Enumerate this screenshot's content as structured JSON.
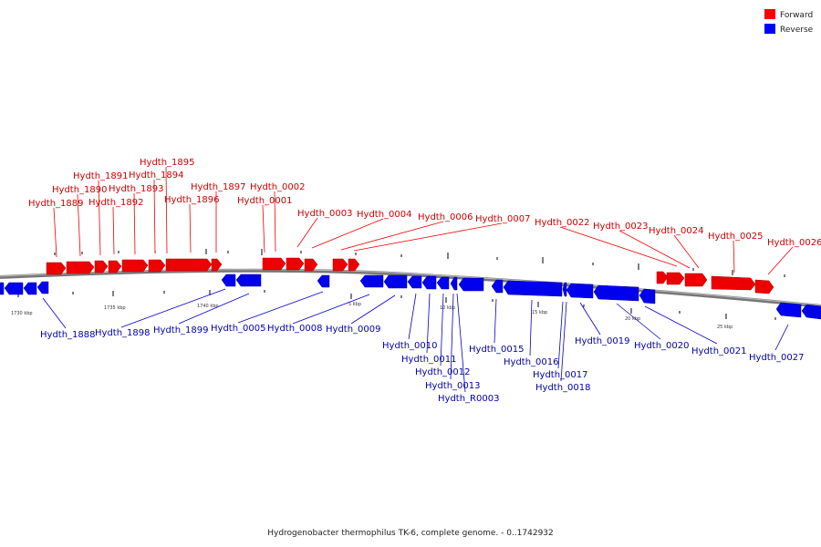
{
  "legend": [
    {
      "label": "Forward",
      "color": "#ff0000"
    },
    {
      "label": "Reverse",
      "color": "#0000ff"
    }
  ],
  "caption": "Hydrogenobacter thermophilus TK-6, complete genome. - 0..1742932",
  "ruler_ticks": [
    "1730 kbp",
    "1735 kbp",
    "1740 kbp",
    "5 kbp",
    "10 kbp",
    "15 kbp",
    "20 kbp",
    "25 kbp"
  ],
  "forward_labels": [
    "Hydth_1889",
    "Hydth_1890",
    "Hydth_1891",
    "Hydth_1892",
    "Hydth_1893",
    "Hydth_1894",
    "Hydth_1895",
    "Hydth_1896",
    "Hydth_1897",
    "Hydth_0001",
    "Hydth_0002",
    "Hydth_0003",
    "Hydth_0004",
    "Hydth_0006",
    "Hydth_0007",
    "Hydth_0022",
    "Hydth_0023",
    "Hydth_0024",
    "Hydth_0025",
    "Hydth_0026"
  ],
  "reverse_labels": [
    "Hydth_1888",
    "Hydth_1898",
    "Hydth_1899",
    "Hydth_0005",
    "Hydth_0008",
    "Hydth_0009",
    "Hydth_0010",
    "Hydth_0011",
    "Hydth_0012",
    "Hydth_0013",
    "Hydth_R0003",
    "Hydth_0015",
    "Hydth_0016",
    "Hydth_0017",
    "Hydth_0018",
    "Hydth_0019",
    "Hydth_0020",
    "Hydth_0021",
    "Hydth_0027"
  ]
}
